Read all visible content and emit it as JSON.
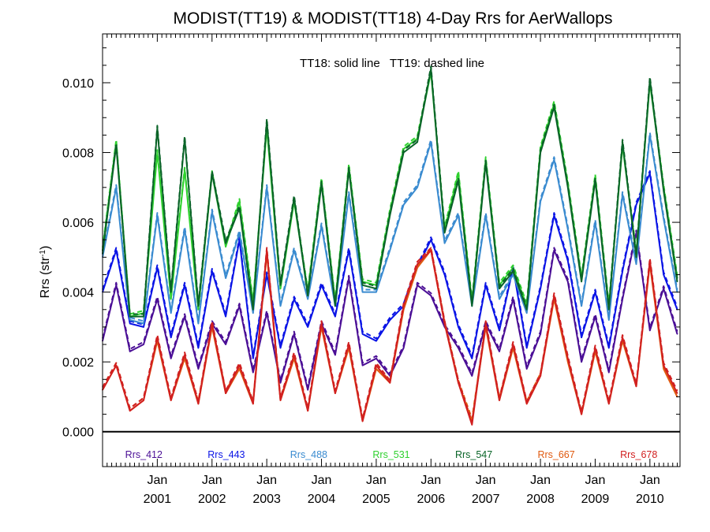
{
  "chart_data": {
    "type": "line",
    "title": "MODIST(TT19) & MODIST(TT18) 4-Day Rrs for AerWallops",
    "ylabel": "Rrs (str",
    "ylabel_sup": "-1",
    "ylabel_end": ")",
    "annotation": "TT18: solid line   TT19: dashed line",
    "xlim": [
      2000.0,
      2010.55
    ],
    "ylim": [
      -0.001,
      0.0114
    ],
    "grid": false,
    "legend_placement": "bottom",
    "yticks": [
      "0.000",
      "0.002",
      "0.004",
      "0.006",
      "0.008",
      "0.010"
    ],
    "ytick_values": [
      0,
      0.002,
      0.004,
      0.006,
      0.008,
      0.01
    ],
    "xticks": [
      {
        "month": "Jan",
        "year": "2001",
        "x": 2001.0
      },
      {
        "month": "Jan",
        "year": "2002",
        "x": 2002.0
      },
      {
        "month": "Jan",
        "year": "2003",
        "x": 2003.0
      },
      {
        "month": "Jan",
        "year": "2004",
        "x": 2004.0
      },
      {
        "month": "Jan",
        "year": "2005",
        "x": 2005.0
      },
      {
        "month": "Jan",
        "year": "2006",
        "x": 2006.0
      },
      {
        "month": "Jan",
        "year": "2007",
        "x": 2007.0
      },
      {
        "month": "Jan",
        "year": "2008",
        "x": 2008.0
      },
      {
        "month": "Jan",
        "year": "2009",
        "x": 2009.0
      },
      {
        "month": "Jan",
        "year": "2010",
        "x": 2010.0
      }
    ],
    "series": [
      {
        "name": "Rrs_412",
        "color": "#4b0f96",
        "x": [
          2000.0,
          2000.25,
          2000.5,
          2000.75,
          2001.0,
          2001.25,
          2001.5,
          2001.75,
          2002.0,
          2002.25,
          2002.5,
          2002.75,
          2003.0,
          2003.25,
          2003.5,
          2003.75,
          2004.0,
          2004.25,
          2004.5,
          2004.75,
          2005.0,
          2005.25,
          2005.5,
          2005.75,
          2006.0,
          2006.25,
          2006.5,
          2006.75,
          2007.0,
          2007.25,
          2007.5,
          2007.75,
          2008.0,
          2008.25,
          2008.5,
          2008.75,
          2009.0,
          2009.25,
          2009.5,
          2009.75,
          2010.0,
          2010.25,
          2010.5
        ],
        "y": [
          0.0026,
          0.0042,
          0.0023,
          0.0025,
          0.0038,
          0.0021,
          0.0033,
          0.0018,
          0.0031,
          0.0025,
          0.0036,
          0.0017,
          0.0034,
          0.0014,
          0.0028,
          0.0012,
          0.0031,
          0.0022,
          0.0044,
          0.0019,
          0.0021,
          0.0016,
          0.0024,
          0.0042,
          0.0039,
          0.003,
          0.0024,
          0.0016,
          0.0031,
          0.0023,
          0.0038,
          0.0018,
          0.0028,
          0.0052,
          0.0043,
          0.002,
          0.0033,
          0.0017,
          0.0038,
          0.0057,
          0.0029,
          0.0041,
          0.0028
        ]
      },
      {
        "name": "Rrs_443",
        "color": "#0a14e6",
        "x": [
          2000.0,
          2000.25,
          2000.5,
          2000.75,
          2001.0,
          2001.25,
          2001.5,
          2001.75,
          2002.0,
          2002.25,
          2002.5,
          2002.75,
          2003.0,
          2003.25,
          2003.5,
          2003.75,
          2004.0,
          2004.25,
          2004.5,
          2004.75,
          2005.0,
          2005.25,
          2005.5,
          2005.75,
          2006.0,
          2006.25,
          2006.5,
          2006.75,
          2007.0,
          2007.25,
          2007.5,
          2007.75,
          2008.0,
          2008.25,
          2008.5,
          2008.75,
          2009.0,
          2009.25,
          2009.5,
          2009.75,
          2010.0,
          2010.25,
          2010.5
        ],
        "y": [
          0.004,
          0.0052,
          0.0031,
          0.003,
          0.0047,
          0.0027,
          0.0042,
          0.0024,
          0.0046,
          0.0033,
          0.0055,
          0.0021,
          0.0045,
          0.0024,
          0.0038,
          0.003,
          0.0042,
          0.0033,
          0.0052,
          0.0028,
          0.0026,
          0.0032,
          0.0036,
          0.0047,
          0.0055,
          0.0045,
          0.003,
          0.0021,
          0.0042,
          0.0029,
          0.0047,
          0.0024,
          0.0041,
          0.0062,
          0.0049,
          0.0027,
          0.004,
          0.0024,
          0.0046,
          0.0065,
          0.0074,
          0.0045,
          0.0035
        ]
      },
      {
        "name": "Rrs_488",
        "color": "#3a8bd0",
        "x": [
          2000.0,
          2000.25,
          2000.5,
          2000.75,
          2001.0,
          2001.25,
          2001.5,
          2001.75,
          2002.0,
          2002.25,
          2002.5,
          2002.75,
          2003.0,
          2003.25,
          2003.5,
          2003.75,
          2004.0,
          2004.25,
          2004.5,
          2004.75,
          2005.0,
          2005.25,
          2005.5,
          2005.75,
          2006.0,
          2006.25,
          2006.5,
          2006.75,
          2007.0,
          2007.25,
          2007.5,
          2007.75,
          2008.0,
          2008.25,
          2008.5,
          2008.75,
          2009.0,
          2009.25,
          2009.5,
          2009.75,
          2010.0,
          2010.25,
          2010.5
        ],
        "y": [
          0.005,
          0.007,
          0.0032,
          0.0031,
          0.0062,
          0.0034,
          0.0058,
          0.0031,
          0.0063,
          0.0044,
          0.0057,
          0.0034,
          0.007,
          0.0036,
          0.0052,
          0.0038,
          0.0059,
          0.0036,
          0.0068,
          0.004,
          0.004,
          0.0052,
          0.0065,
          0.007,
          0.0083,
          0.0054,
          0.0062,
          0.0036,
          0.0062,
          0.0038,
          0.0045,
          0.0034,
          0.0066,
          0.0078,
          0.0058,
          0.0036,
          0.006,
          0.0032,
          0.0068,
          0.0048,
          0.0085,
          0.0061,
          0.004
        ]
      },
      {
        "name": "Rrs_531",
        "color": "#2fd12f",
        "x": [
          2000.0,
          2000.25,
          2000.5,
          2000.75,
          2001.0,
          2001.25,
          2001.5,
          2001.75,
          2002.0,
          2002.25,
          2002.5,
          2002.75,
          2003.0,
          2003.25,
          2003.5,
          2003.75,
          2004.0,
          2004.25,
          2004.5,
          2004.75,
          2005.0,
          2005.25,
          2005.5,
          2005.75,
          2006.0,
          2006.25,
          2006.5,
          2006.75,
          2007.0,
          2007.25,
          2007.5,
          2007.75,
          2008.0,
          2008.25,
          2008.5,
          2008.75,
          2009.0,
          2009.25,
          2009.5,
          2009.75,
          2010.0,
          2010.25,
          2010.5
        ],
        "y": [
          0.0052,
          0.0083,
          0.0033,
          0.0034,
          0.008,
          0.0038,
          0.0075,
          0.0035,
          0.0074,
          0.0053,
          0.0066,
          0.0037,
          0.0087,
          0.0041,
          0.0066,
          0.004,
          0.0072,
          0.0037,
          0.0076,
          0.0043,
          0.0042,
          0.0063,
          0.0081,
          0.0084,
          0.0103,
          0.0058,
          0.0074,
          0.0037,
          0.0078,
          0.0042,
          0.0047,
          0.0036,
          0.0081,
          0.0094,
          0.0071,
          0.0044,
          0.0073,
          0.0036,
          0.0082,
          0.0051,
          0.01,
          0.007,
          0.0044
        ]
      },
      {
        "name": "Rrs_547",
        "color": "#0a6428",
        "x": [
          2000.0,
          2000.25,
          2000.5,
          2000.75,
          2001.0,
          2001.25,
          2001.5,
          2001.75,
          2002.0,
          2002.25,
          2002.5,
          2002.75,
          2003.0,
          2003.25,
          2003.5,
          2003.75,
          2004.0,
          2004.25,
          2004.5,
          2004.75,
          2005.0,
          2005.25,
          2005.5,
          2005.75,
          2006.0,
          2006.25,
          2006.5,
          2006.75,
          2007.0,
          2007.25,
          2007.5,
          2007.75,
          2008.0,
          2008.25,
          2008.5,
          2008.75,
          2009.0,
          2009.25,
          2009.5,
          2009.75,
          2010.0,
          2010.25,
          2010.5
        ],
        "y": [
          0.0051,
          0.0082,
          0.0033,
          0.0033,
          0.0087,
          0.004,
          0.0084,
          0.0036,
          0.0074,
          0.0054,
          0.0064,
          0.0035,
          0.0089,
          0.0042,
          0.0067,
          0.0039,
          0.0071,
          0.0036,
          0.0075,
          0.0042,
          0.0041,
          0.0062,
          0.008,
          0.0083,
          0.0104,
          0.0057,
          0.0072,
          0.0036,
          0.0077,
          0.0041,
          0.0046,
          0.0035,
          0.008,
          0.0093,
          0.007,
          0.0043,
          0.0072,
          0.0035,
          0.0083,
          0.005,
          0.0101,
          0.0069,
          0.0043
        ]
      },
      {
        "name": "Rrs_667",
        "color": "#e05a10",
        "x": [
          2000.0,
          2000.25,
          2000.5,
          2000.75,
          2001.0,
          2001.25,
          2001.5,
          2001.75,
          2002.0,
          2002.25,
          2002.5,
          2002.75,
          2003.0,
          2003.25,
          2003.5,
          2003.75,
          2004.0,
          2004.25,
          2004.5,
          2004.75,
          2005.0,
          2005.25,
          2005.5,
          2005.75,
          2006.0,
          2006.25,
          2006.5,
          2006.75,
          2007.0,
          2007.25,
          2007.5,
          2007.75,
          2008.0,
          2008.25,
          2008.5,
          2008.75,
          2009.0,
          2009.25,
          2009.5,
          2009.75,
          2010.0,
          2010.25,
          2010.5
        ],
        "y": [
          0.0012,
          0.0019,
          0.0006,
          0.0009,
          0.0026,
          0.0009,
          0.0021,
          0.0008,
          0.003,
          0.0011,
          0.0018,
          0.0008,
          0.0051,
          0.0009,
          0.0021,
          0.0006,
          0.003,
          0.0011,
          0.0024,
          0.0003,
          0.0018,
          0.0014,
          0.0035,
          0.0047,
          0.0052,
          0.0031,
          0.0014,
          0.0003,
          0.003,
          0.0009,
          0.0024,
          0.0008,
          0.0016,
          0.0038,
          0.002,
          0.0005,
          0.0023,
          0.0008,
          0.0026,
          0.0013,
          0.0048,
          0.0018,
          0.001
        ]
      },
      {
        "name": "Rrs_678",
        "color": "#d12020",
        "x": [
          2000.0,
          2000.25,
          2000.5,
          2000.75,
          2001.0,
          2001.25,
          2001.5,
          2001.75,
          2002.0,
          2002.25,
          2002.5,
          2002.75,
          2003.0,
          2003.25,
          2003.5,
          2003.75,
          2004.0,
          2004.25,
          2004.5,
          2004.75,
          2005.0,
          2005.25,
          2005.5,
          2005.75,
          2006.0,
          2006.25,
          2006.5,
          2006.75,
          2007.0,
          2007.25,
          2007.5,
          2007.75,
          2008.0,
          2008.25,
          2008.5,
          2008.75,
          2009.0,
          2009.25,
          2009.5,
          2009.75,
          2010.0,
          2010.25,
          2010.5
        ],
        "y": [
          0.0012,
          0.0019,
          0.0006,
          0.0009,
          0.0027,
          0.0009,
          0.0022,
          0.0008,
          0.0031,
          0.0011,
          0.0019,
          0.0008,
          0.0052,
          0.0009,
          0.0022,
          0.0006,
          0.0031,
          0.0011,
          0.0025,
          0.0003,
          0.0019,
          0.0014,
          0.0036,
          0.0048,
          0.0052,
          0.0031,
          0.0014,
          0.0002,
          0.0031,
          0.0009,
          0.0025,
          0.0008,
          0.0016,
          0.0039,
          0.0021,
          0.0005,
          0.0024,
          0.0008,
          0.0027,
          0.0013,
          0.0049,
          0.0019,
          0.0011
        ]
      }
    ],
    "legend": [
      {
        "label": "Rrs_412",
        "color": "#4b0f96"
      },
      {
        "label": "Rrs_443",
        "color": "#0a14e6"
      },
      {
        "label": "Rrs_488",
        "color": "#3a8bd0"
      },
      {
        "label": "Rrs_531",
        "color": "#2fd12f"
      },
      {
        "label": "Rrs_547",
        "color": "#0a6428"
      },
      {
        "label": "Rrs_667",
        "color": "#e05a10"
      },
      {
        "label": "Rrs_678",
        "color": "#d12020"
      }
    ]
  }
}
